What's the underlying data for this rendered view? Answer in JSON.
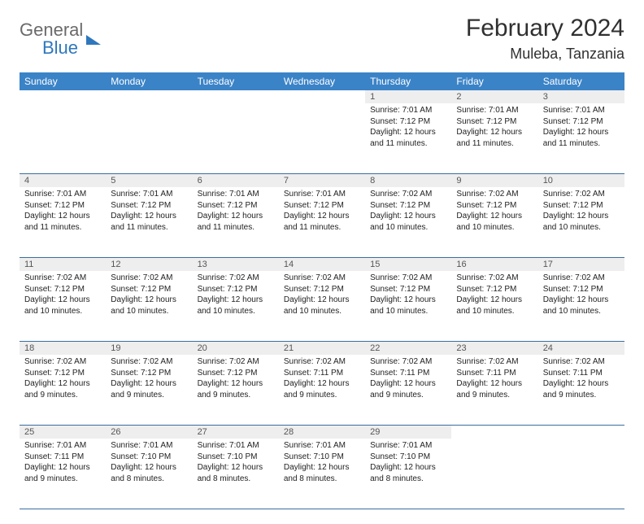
{
  "logo": {
    "word1": "General",
    "word2": "Blue"
  },
  "title": "February 2024",
  "location": "Muleba, Tanzania",
  "colors": {
    "header_bg": "#3b83c7",
    "header_fg": "#ffffff",
    "daynum_bg": "#eeeeee",
    "rule": "#3b6ea0",
    "logo_gray": "#6a6a6a",
    "logo_blue": "#2f77bd"
  },
  "weekdays": [
    "Sunday",
    "Monday",
    "Tuesday",
    "Wednesday",
    "Thursday",
    "Friday",
    "Saturday"
  ],
  "weeks": [
    [
      null,
      null,
      null,
      null,
      {
        "n": "1",
        "sr": "7:01 AM",
        "ss": "7:12 PM",
        "dl": "12 hours and 11 minutes."
      },
      {
        "n": "2",
        "sr": "7:01 AM",
        "ss": "7:12 PM",
        "dl": "12 hours and 11 minutes."
      },
      {
        "n": "3",
        "sr": "7:01 AM",
        "ss": "7:12 PM",
        "dl": "12 hours and 11 minutes."
      }
    ],
    [
      {
        "n": "4",
        "sr": "7:01 AM",
        "ss": "7:12 PM",
        "dl": "12 hours and 11 minutes."
      },
      {
        "n": "5",
        "sr": "7:01 AM",
        "ss": "7:12 PM",
        "dl": "12 hours and 11 minutes."
      },
      {
        "n": "6",
        "sr": "7:01 AM",
        "ss": "7:12 PM",
        "dl": "12 hours and 11 minutes."
      },
      {
        "n": "7",
        "sr": "7:01 AM",
        "ss": "7:12 PM",
        "dl": "12 hours and 11 minutes."
      },
      {
        "n": "8",
        "sr": "7:02 AM",
        "ss": "7:12 PM",
        "dl": "12 hours and 10 minutes."
      },
      {
        "n": "9",
        "sr": "7:02 AM",
        "ss": "7:12 PM",
        "dl": "12 hours and 10 minutes."
      },
      {
        "n": "10",
        "sr": "7:02 AM",
        "ss": "7:12 PM",
        "dl": "12 hours and 10 minutes."
      }
    ],
    [
      {
        "n": "11",
        "sr": "7:02 AM",
        "ss": "7:12 PM",
        "dl": "12 hours and 10 minutes."
      },
      {
        "n": "12",
        "sr": "7:02 AM",
        "ss": "7:12 PM",
        "dl": "12 hours and 10 minutes."
      },
      {
        "n": "13",
        "sr": "7:02 AM",
        "ss": "7:12 PM",
        "dl": "12 hours and 10 minutes."
      },
      {
        "n": "14",
        "sr": "7:02 AM",
        "ss": "7:12 PM",
        "dl": "12 hours and 10 minutes."
      },
      {
        "n": "15",
        "sr": "7:02 AM",
        "ss": "7:12 PM",
        "dl": "12 hours and 10 minutes."
      },
      {
        "n": "16",
        "sr": "7:02 AM",
        "ss": "7:12 PM",
        "dl": "12 hours and 10 minutes."
      },
      {
        "n": "17",
        "sr": "7:02 AM",
        "ss": "7:12 PM",
        "dl": "12 hours and 10 minutes."
      }
    ],
    [
      {
        "n": "18",
        "sr": "7:02 AM",
        "ss": "7:12 PM",
        "dl": "12 hours and 9 minutes."
      },
      {
        "n": "19",
        "sr": "7:02 AM",
        "ss": "7:12 PM",
        "dl": "12 hours and 9 minutes."
      },
      {
        "n": "20",
        "sr": "7:02 AM",
        "ss": "7:12 PM",
        "dl": "12 hours and 9 minutes."
      },
      {
        "n": "21",
        "sr": "7:02 AM",
        "ss": "7:11 PM",
        "dl": "12 hours and 9 minutes."
      },
      {
        "n": "22",
        "sr": "7:02 AM",
        "ss": "7:11 PM",
        "dl": "12 hours and 9 minutes."
      },
      {
        "n": "23",
        "sr": "7:02 AM",
        "ss": "7:11 PM",
        "dl": "12 hours and 9 minutes."
      },
      {
        "n": "24",
        "sr": "7:02 AM",
        "ss": "7:11 PM",
        "dl": "12 hours and 9 minutes."
      }
    ],
    [
      {
        "n": "25",
        "sr": "7:01 AM",
        "ss": "7:11 PM",
        "dl": "12 hours and 9 minutes."
      },
      {
        "n": "26",
        "sr": "7:01 AM",
        "ss": "7:10 PM",
        "dl": "12 hours and 8 minutes."
      },
      {
        "n": "27",
        "sr": "7:01 AM",
        "ss": "7:10 PM",
        "dl": "12 hours and 8 minutes."
      },
      {
        "n": "28",
        "sr": "7:01 AM",
        "ss": "7:10 PM",
        "dl": "12 hours and 8 minutes."
      },
      {
        "n": "29",
        "sr": "7:01 AM",
        "ss": "7:10 PM",
        "dl": "12 hours and 8 minutes."
      },
      null,
      null
    ]
  ],
  "labels": {
    "sunrise": "Sunrise: ",
    "sunset": "Sunset: ",
    "daylight": "Daylight: "
  }
}
